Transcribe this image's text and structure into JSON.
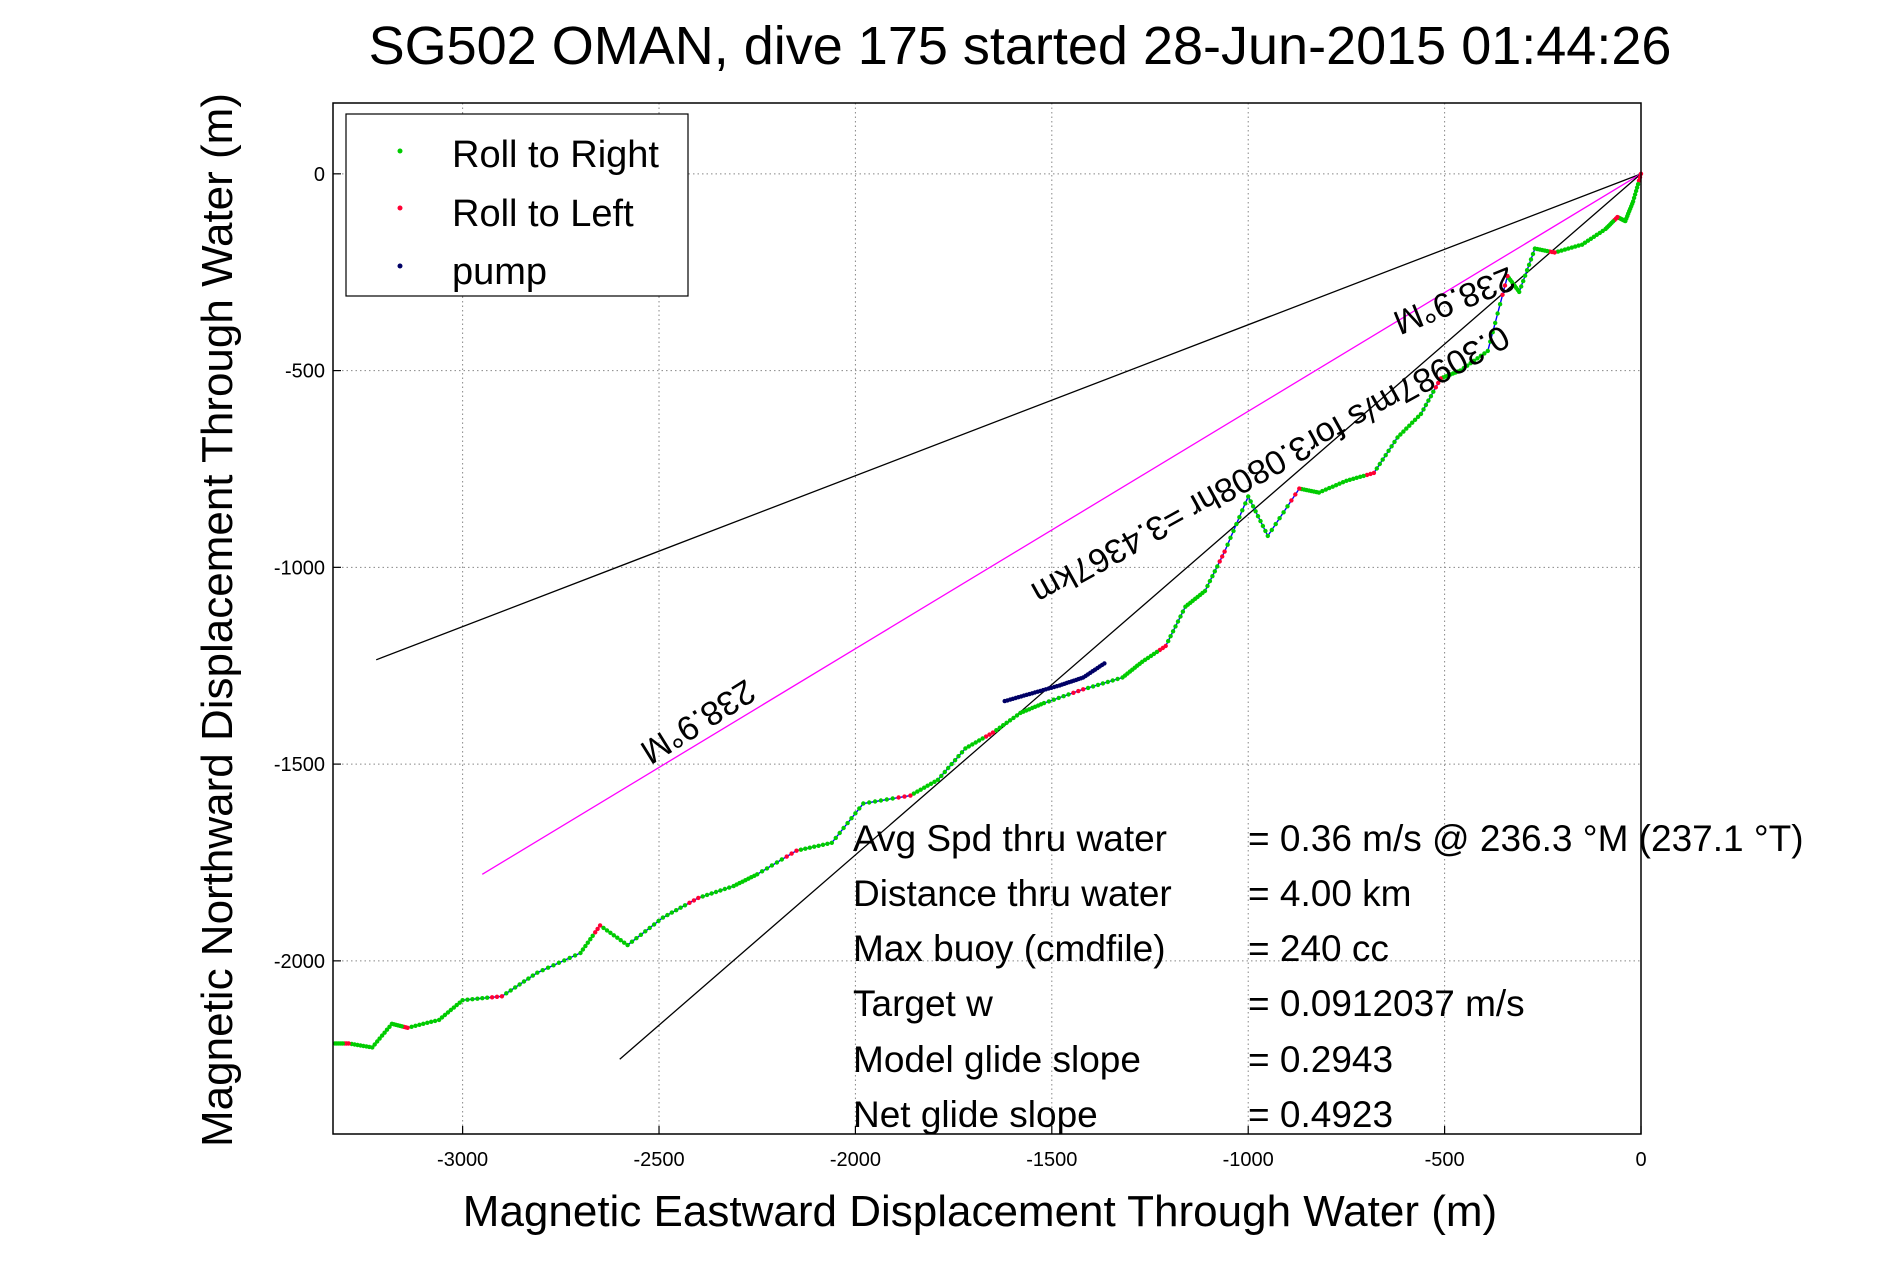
{
  "chart_data": {
    "type": "line",
    "title": "SG502 OMAN, dive 175 started 28-Jun-2015 01:44:26",
    "xlabel": "Magnetic Eastward Displacement Through Water (m)",
    "ylabel": "Magnetic Northward Displacement Through Water (m)",
    "xlim": [
      -3330,
      0
    ],
    "ylim": [
      -2440,
      180
    ],
    "xticks": [
      -3000,
      -2500,
      -2000,
      -1500,
      -1000,
      -500,
      0
    ],
    "yticks": [
      0,
      -500,
      -1000,
      -1500,
      -2000
    ],
    "grid": true,
    "legend_position": "top-left",
    "legend": [
      {
        "label": "Roll to Right",
        "color": "#00cc00"
      },
      {
        "label": "Roll to Left",
        "color": "#ff0033"
      },
      {
        "label": "pump",
        "color": "#000066"
      }
    ],
    "track": {
      "color": "#0000ff",
      "x": [
        0,
        -20,
        -40,
        -60,
        -90,
        -150,
        -220,
        -270,
        -310,
        -340,
        -390,
        -460,
        -510,
        -560,
        -620,
        -680,
        -750,
        -820,
        -870,
        -950,
        -1000,
        -1060,
        -1110,
        -1160,
        -1210,
        -1270,
        -1320,
        -1420,
        -1520,
        -1580,
        -1650,
        -1720,
        -1790,
        -1860,
        -1980,
        -2060,
        -2150,
        -2250,
        -2310,
        -2400,
        -2490,
        -2580,
        -2650,
        -2700,
        -2810,
        -2900,
        -3000,
        -3060,
        -3140,
        -3180,
        -3230,
        -3290,
        -3330
      ],
      "y": [
        0,
        -70,
        -120,
        -110,
        -140,
        -180,
        -200,
        -190,
        -300,
        -260,
        -450,
        -500,
        -520,
        -610,
        -670,
        -760,
        -780,
        -810,
        -800,
        -920,
        -820,
        -960,
        -1060,
        -1100,
        -1200,
        -1240,
        -1280,
        -1310,
        -1345,
        -1370,
        -1420,
        -1460,
        -1540,
        -1580,
        -1600,
        -1700,
        -1720,
        -1780,
        -1810,
        -1840,
        -1890,
        -1960,
        -1910,
        -1980,
        -2030,
        -2090,
        -2100,
        -2150,
        -2170,
        -2160,
        -2220,
        -2210,
        -2210
      ]
    },
    "ref_lines": [
      {
        "name": "upper",
        "color": "#000000",
        "x": [
          0,
          -3220
        ],
        "y": [
          0,
          -1235
        ]
      },
      {
        "name": "magenta",
        "color": "#ff00ff",
        "x": [
          0,
          -2950
        ],
        "y": [
          0,
          -1780
        ]
      },
      {
        "name": "lower",
        "color": "#000000",
        "x": [
          0,
          -2600
        ],
        "y": [
          0,
          -2250
        ]
      }
    ],
    "pump_segment": {
      "x": [
        -1620,
        -1550,
        -1480,
        -1420,
        -1360
      ],
      "y": [
        -1340,
        -1320,
        -1300,
        -1280,
        -1240
      ]
    },
    "annotations": {
      "heading_upper": "238.9°M",
      "speed_line": "0.30987m/s for3.0808hr =3.4367km",
      "heading_lower": "238.9°M"
    },
    "stats": [
      {
        "label": "Avg Spd thru water",
        "value": "=  0.36 m/s @ 236.3 °M (237.1 °T)"
      },
      {
        "label": "Distance thru water",
        "value": "=  4.00 km"
      },
      {
        "label": "Max buoy (cmdfile)",
        "value": "= 240 cc"
      },
      {
        "label": "Target w",
        "value": "= 0.0912037 m/s"
      },
      {
        "label": "Model glide slope",
        "value": "= 0.2943"
      },
      {
        "label": "Net glide slope",
        "value": "= 0.4923"
      }
    ]
  }
}
